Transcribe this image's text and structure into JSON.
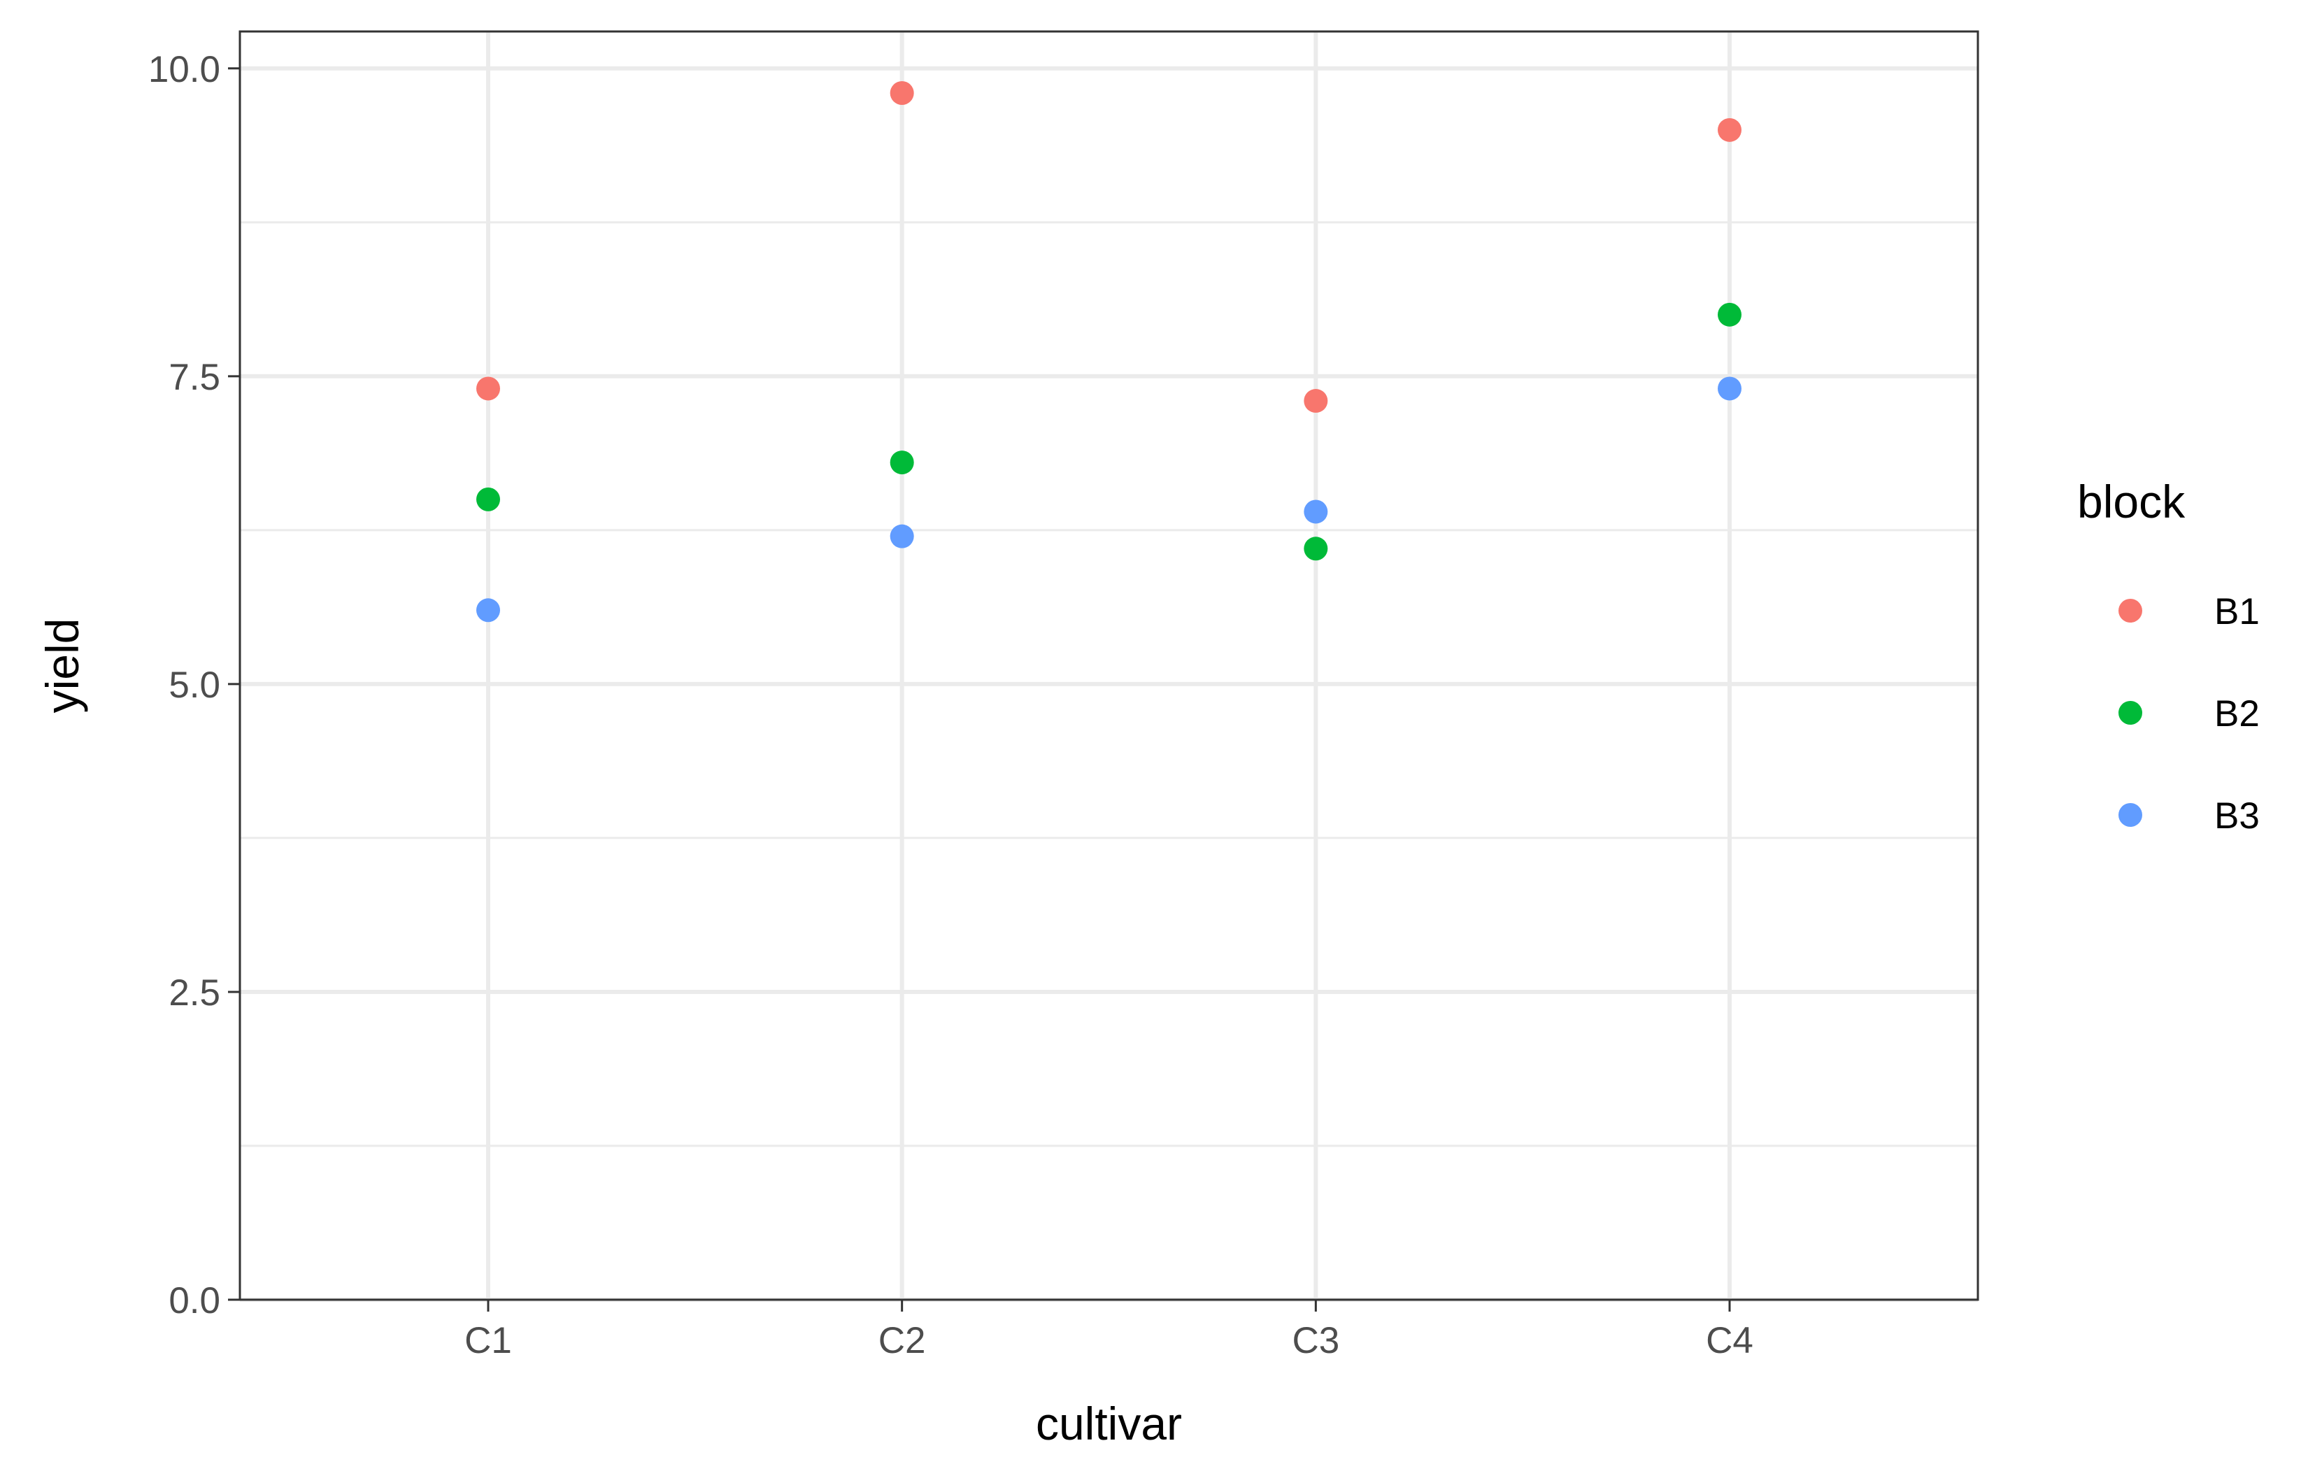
{
  "chart_data": {
    "type": "scatter",
    "title": "",
    "xlabel": "cultivar",
    "ylabel": "yield",
    "categories": [
      "C1",
      "C2",
      "C3",
      "C4"
    ],
    "ylim": [
      0,
      10.3
    ],
    "yticks": [
      0,
      2.5,
      5,
      7.5,
      10
    ],
    "ytick_labels": [
      "0.0",
      "2.5",
      "5.0",
      "7.5",
      "10.0"
    ],
    "grid": true,
    "legend": {
      "title": "block",
      "placement": "right"
    },
    "series": [
      {
        "name": "B1",
        "color": "#F8766D",
        "values": [
          7.4,
          9.8,
          7.3,
          9.5
        ]
      },
      {
        "name": "B2",
        "color": "#00BA38",
        "values": [
          6.5,
          6.8,
          6.1,
          8.0
        ]
      },
      {
        "name": "B3",
        "color": "#619CFF",
        "values": [
          5.6,
          6.2,
          6.4,
          7.4
        ]
      }
    ]
  }
}
